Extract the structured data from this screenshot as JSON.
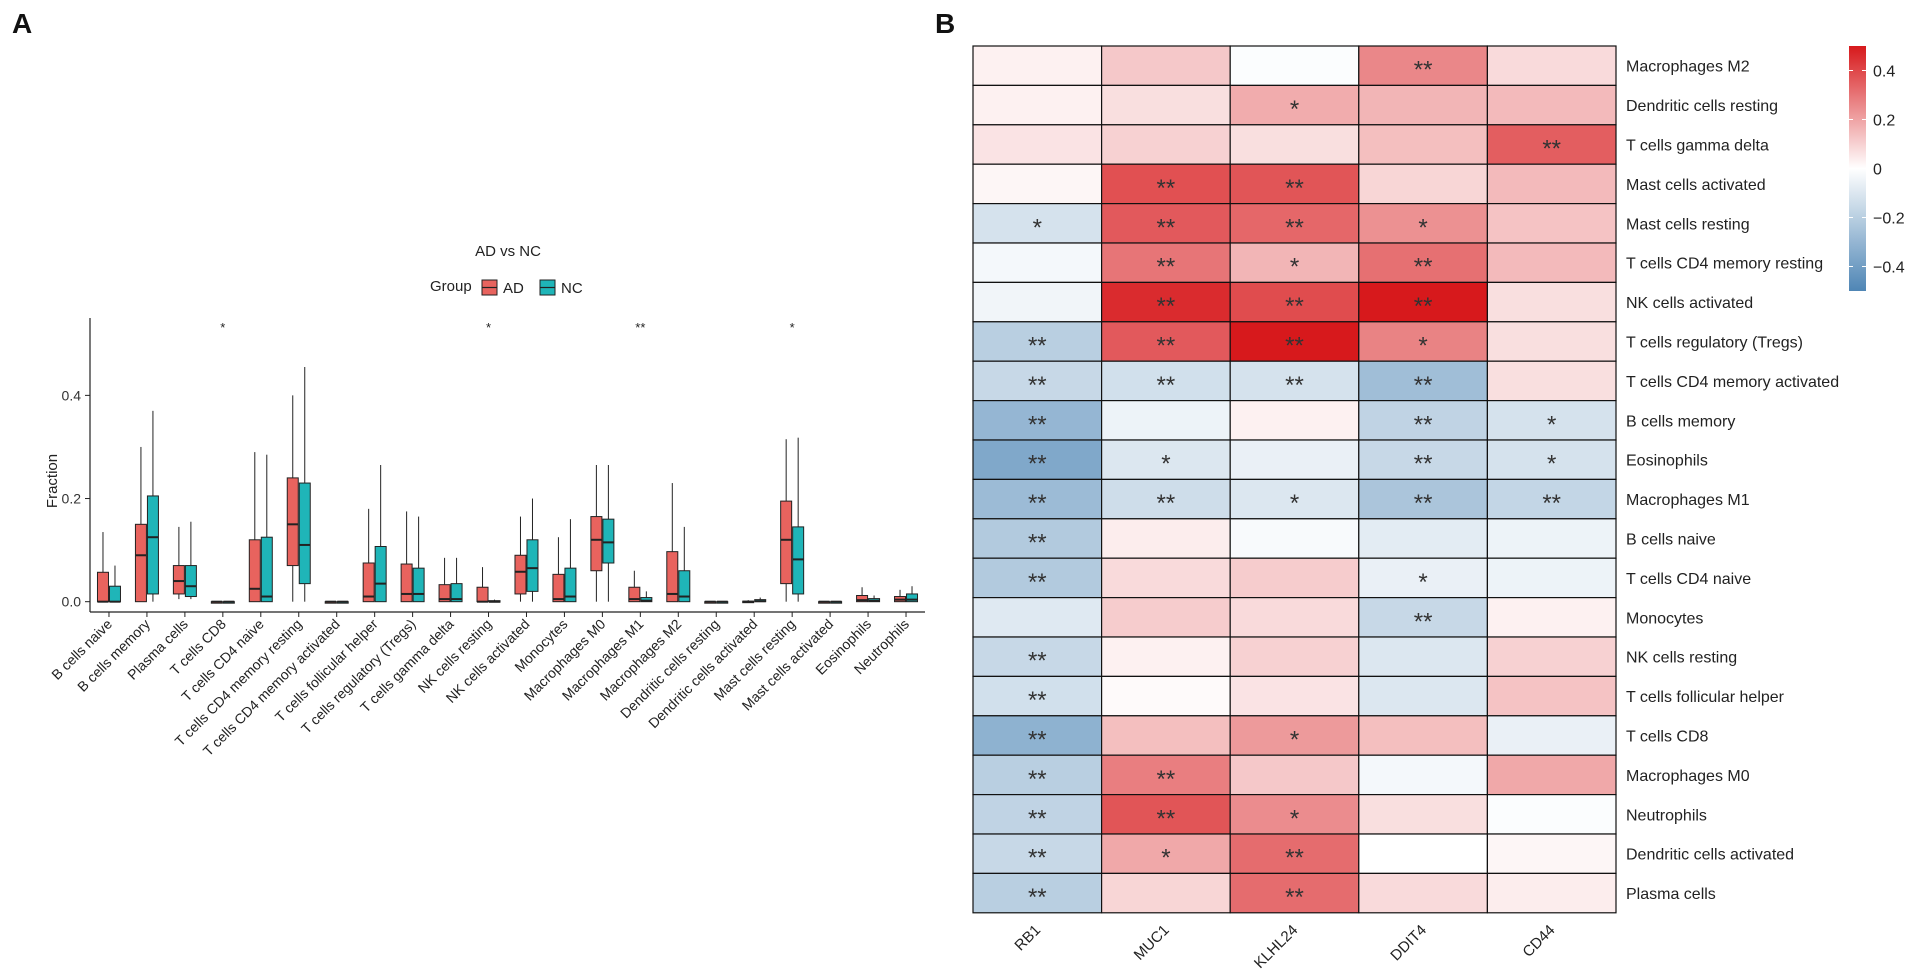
{
  "panels": {
    "a_label": "A",
    "b_label": "B"
  },
  "colors": {
    "ad": "#E8635E",
    "nc": "#1FB5B8",
    "high": "#D7191C",
    "mid": "#FFFFFF",
    "low": "#4F86B5"
  },
  "chart_data": [
    {
      "type": "box",
      "legend_title": "AD vs NC",
      "legend_group_label": "Group",
      "groups": [
        "AD",
        "NC"
      ],
      "ylabel": "Fraction",
      "ylim": [
        -0.02,
        0.55
      ],
      "yticks": [
        "0.0",
        "0.2",
        "0.4"
      ],
      "categories": [
        "B cells naive",
        "B cells memory",
        "Plasma cells",
        "T cells CD8",
        "T cells CD4 naive",
        "T cells CD4 memory resting",
        "T cells CD4 memory activated",
        "T cells follicular helper",
        "T cells regulatory (Tregs)",
        "T cells gamma delta",
        "NK cells resting",
        "NK cells activated",
        "Monocytes",
        "Macrophages M0",
        "Macrophages M1",
        "Macrophages M2",
        "Dendritic cells resting",
        "Dendritic cells activated",
        "Mast cells resting",
        "Mast cells activated",
        "Eosinophils",
        "Neutrophils"
      ],
      "significance": [
        "",
        "",
        "",
        "*",
        "",
        "",
        "",
        "",
        "",
        "",
        "*",
        "",
        "",
        "",
        "**",
        "",
        "",
        "",
        "*",
        "",
        "",
        ""
      ],
      "series": [
        {
          "name": "AD",
          "boxes": [
            {
              "min": 0,
              "q1": 0,
              "median": 0,
              "q3": 0.057,
              "max": 0.135
            },
            {
              "min": 0,
              "q1": 0,
              "median": 0.09,
              "q3": 0.15,
              "max": 0.3
            },
            {
              "min": 0.005,
              "q1": 0.015,
              "median": 0.04,
              "q3": 0.07,
              "max": 0.145
            },
            {
              "min": 0,
              "q1": 0,
              "median": 0,
              "q3": 0,
              "max": 0
            },
            {
              "min": 0,
              "q1": 0,
              "median": 0.025,
              "q3": 0.12,
              "max": 0.29
            },
            {
              "min": 0,
              "q1": 0.07,
              "median": 0.15,
              "q3": 0.24,
              "max": 0.4
            },
            {
              "min": 0,
              "q1": 0,
              "median": 0,
              "q3": 0,
              "max": 0
            },
            {
              "min": 0,
              "q1": 0,
              "median": 0.01,
              "q3": 0.075,
              "max": 0.18
            },
            {
              "min": 0,
              "q1": 0,
              "median": 0.015,
              "q3": 0.073,
              "max": 0.175
            },
            {
              "min": 0,
              "q1": 0,
              "median": 0.005,
              "q3": 0.033,
              "max": 0.085
            },
            {
              "min": 0,
              "q1": 0,
              "median": 0,
              "q3": 0.028,
              "max": 0.067
            },
            {
              "min": 0,
              "q1": 0.015,
              "median": 0.058,
              "q3": 0.09,
              "max": 0.165
            },
            {
              "min": 0,
              "q1": 0,
              "median": 0.005,
              "q3": 0.053,
              "max": 0.125
            },
            {
              "min": 0,
              "q1": 0.06,
              "median": 0.12,
              "q3": 0.165,
              "max": 0.265
            },
            {
              "min": 0,
              "q1": 0,
              "median": 0.005,
              "q3": 0.028,
              "max": 0.06
            },
            {
              "min": 0,
              "q1": 0,
              "median": 0.015,
              "q3": 0.097,
              "max": 0.23
            },
            {
              "min": 0,
              "q1": 0,
              "median": 0,
              "q3": 0,
              "max": 0
            },
            {
              "min": 0,
              "q1": 0,
              "median": 0,
              "q3": 0.001,
              "max": 0.003
            },
            {
              "min": 0,
              "q1": 0.035,
              "median": 0.12,
              "q3": 0.195,
              "max": 0.315
            },
            {
              "min": 0,
              "q1": 0,
              "median": 0,
              "q3": 0,
              "max": 0
            },
            {
              "min": 0,
              "q1": 0,
              "median": 0.003,
              "q3": 0.012,
              "max": 0.028
            },
            {
              "min": 0,
              "q1": 0,
              "median": 0.004,
              "q3": 0.01,
              "max": 0.023
            }
          ]
        },
        {
          "name": "NC",
          "boxes": [
            {
              "min": 0,
              "q1": 0,
              "median": 0,
              "q3": 0.03,
              "max": 0.07
            },
            {
              "min": 0,
              "q1": 0.015,
              "median": 0.125,
              "q3": 0.205,
              "max": 0.37
            },
            {
              "min": 0.005,
              "q1": 0.01,
              "median": 0.03,
              "q3": 0.07,
              "max": 0.155
            },
            {
              "min": 0,
              "q1": 0,
              "median": 0,
              "q3": 0,
              "max": 0
            },
            {
              "min": 0,
              "q1": 0,
              "median": 0.01,
              "q3": 0.125,
              "max": 0.285
            },
            {
              "min": 0,
              "q1": 0.035,
              "median": 0.11,
              "q3": 0.23,
              "max": 0.455
            },
            {
              "min": 0,
              "q1": 0,
              "median": 0,
              "q3": 0,
              "max": 0
            },
            {
              "min": 0,
              "q1": 0,
              "median": 0.035,
              "q3": 0.107,
              "max": 0.265
            },
            {
              "min": 0,
              "q1": 0,
              "median": 0.015,
              "q3": 0.065,
              "max": 0.165
            },
            {
              "min": 0,
              "q1": 0,
              "median": 0.005,
              "q3": 0.035,
              "max": 0.085
            },
            {
              "min": 0,
              "q1": 0,
              "median": 0,
              "q3": 0.002,
              "max": 0.004
            },
            {
              "min": 0,
              "q1": 0.02,
              "median": 0.065,
              "q3": 0.12,
              "max": 0.2
            },
            {
              "min": 0,
              "q1": 0,
              "median": 0.01,
              "q3": 0.065,
              "max": 0.16
            },
            {
              "min": 0,
              "q1": 0.075,
              "median": 0.115,
              "q3": 0.16,
              "max": 0.265
            },
            {
              "min": 0,
              "q1": 0,
              "median": 0.002,
              "q3": 0.008,
              "max": 0.02
            },
            {
              "min": 0,
              "q1": 0,
              "median": 0.01,
              "q3": 0.06,
              "max": 0.145
            },
            {
              "min": 0,
              "q1": 0,
              "median": 0,
              "q3": 0,
              "max": 0
            },
            {
              "min": 0,
              "q1": 0,
              "median": 0.001,
              "q3": 0.004,
              "max": 0.008
            },
            {
              "min": 0,
              "q1": 0.015,
              "median": 0.082,
              "q3": 0.145,
              "max": 0.318
            },
            {
              "min": 0,
              "q1": 0,
              "median": 0,
              "q3": 0,
              "max": 0
            },
            {
              "min": 0,
              "q1": 0,
              "median": 0.002,
              "q3": 0.006,
              "max": 0.012
            },
            {
              "min": 0,
              "q1": 0,
              "median": 0.004,
              "q3": 0.015,
              "max": 0.03
            }
          ]
        }
      ]
    },
    {
      "type": "heatmap",
      "columns": [
        "RB1",
        "MUC1",
        "KLHL24",
        "DDIT4",
        "CD44"
      ],
      "rows": [
        "Macrophages M2",
        "Dendritic cells resting",
        "T cells gamma delta",
        "Mast cells activated",
        "Mast cells resting",
        "T cells CD4 memory resting",
        "NK cells activated",
        "T cells regulatory (Tregs)",
        "T cells CD4 memory activated",
        "B cells memory",
        "Eosinophils",
        "Macrophages M1",
        "B cells naive",
        "T cells CD4 naive",
        "Monocytes",
        "NK cells resting",
        "T cells follicular helper",
        "T cells CD8",
        "Macrophages M0",
        "Neutrophils",
        "Dendritic cells activated",
        "Plasma cells"
      ],
      "values": [
        [
          0.03,
          0.12,
          -0.01,
          0.26,
          0.08
        ],
        [
          0.03,
          0.07,
          0.18,
          0.16,
          0.15
        ],
        [
          0.06,
          0.1,
          0.07,
          0.14,
          0.35
        ],
        [
          0.02,
          0.38,
          0.37,
          0.09,
          0.15
        ],
        [
          -0.12,
          0.36,
          0.33,
          0.24,
          0.13
        ],
        [
          -0.03,
          0.3,
          0.16,
          0.31,
          0.15
        ],
        [
          -0.04,
          0.46,
          0.39,
          0.5,
          0.07
        ],
        [
          -0.2,
          0.36,
          0.5,
          0.27,
          0.07
        ],
        [
          -0.16,
          -0.13,
          -0.12,
          -0.27,
          0.07
        ],
        [
          -0.3,
          -0.05,
          0.03,
          -0.18,
          -0.12
        ],
        [
          -0.36,
          -0.1,
          -0.06,
          -0.16,
          -0.12
        ],
        [
          -0.28,
          -0.14,
          -0.1,
          -0.24,
          -0.17
        ],
        [
          -0.22,
          0.04,
          -0.02,
          -0.08,
          -0.05
        ],
        [
          -0.22,
          0.08,
          0.11,
          -0.06,
          -0.05
        ],
        [
          -0.09,
          0.11,
          0.08,
          -0.16,
          0.03
        ],
        [
          -0.16,
          0.03,
          0.1,
          -0.1,
          0.1
        ],
        [
          -0.13,
          0.01,
          0.06,
          -0.1,
          0.13
        ],
        [
          -0.32,
          0.14,
          0.22,
          0.14,
          -0.06
        ],
        [
          -0.2,
          0.28,
          0.12,
          -0.03,
          0.19
        ],
        [
          -0.18,
          0.37,
          0.25,
          0.07,
          -0.01
        ],
        [
          -0.16,
          0.19,
          0.32,
          0.0,
          0.02
        ],
        [
          -0.2,
          0.09,
          0.32,
          0.08,
          0.04
        ]
      ],
      "stars": [
        [
          "",
          "",
          "",
          "**",
          ""
        ],
        [
          "",
          "",
          "*",
          "",
          ""
        ],
        [
          "",
          "",
          "",
          "",
          "**"
        ],
        [
          "",
          "**",
          "**",
          "",
          ""
        ],
        [
          "*",
          "**",
          "**",
          "*",
          ""
        ],
        [
          "",
          "**",
          "*",
          "**",
          ""
        ],
        [
          "",
          "**",
          "**",
          "**",
          ""
        ],
        [
          "**",
          "**",
          "**",
          "*",
          ""
        ],
        [
          "**",
          "**",
          "**",
          "**",
          ""
        ],
        [
          "**",
          "",
          "",
          "**",
          "*"
        ],
        [
          "**",
          "*",
          "",
          "**",
          "*"
        ],
        [
          "**",
          "**",
          "*",
          "**",
          "**"
        ],
        [
          "**",
          "",
          "",
          "",
          ""
        ],
        [
          "**",
          "",
          "",
          "*",
          ""
        ],
        [
          "",
          "",
          "",
          "**",
          ""
        ],
        [
          "**",
          "",
          "",
          "",
          ""
        ],
        [
          "**",
          "",
          "",
          "",
          ""
        ],
        [
          "**",
          "",
          "*",
          "",
          ""
        ],
        [
          "**",
          "**",
          "",
          "",
          ""
        ],
        [
          "**",
          "**",
          "*",
          "",
          ""
        ],
        [
          "**",
          "*",
          "**",
          "",
          ""
        ],
        [
          "**",
          "",
          "**",
          "",
          ""
        ]
      ],
      "color_scale": {
        "min": -0.5,
        "max": 0.5,
        "ticks": [
          "0.4",
          "0.2",
          "0",
          "−0.2",
          "−0.4"
        ]
      }
    }
  ]
}
